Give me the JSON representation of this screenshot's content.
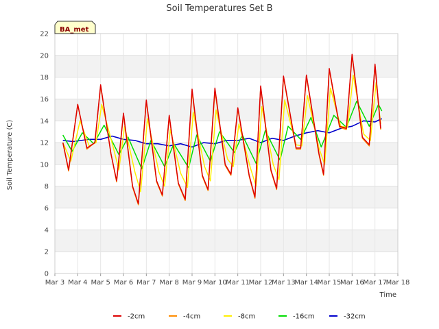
{
  "chart_data": {
    "type": "line",
    "title": "Soil Temperatures Set B",
    "xlabel": "Time",
    "ylabel": "Soil Temperature (C)",
    "site_label": "BA_met",
    "xlim": [
      3,
      18
    ],
    "ylim": [
      0,
      22
    ],
    "x_ticks": [
      {
        "value": 3,
        "label": "Mar 3"
      },
      {
        "value": 4,
        "label": "Mar 4"
      },
      {
        "value": 5,
        "label": "Mar 5"
      },
      {
        "value": 6,
        "label": "Mar 6"
      },
      {
        "value": 7,
        "label": "Mar 7"
      },
      {
        "value": 8,
        "label": "Mar 8"
      },
      {
        "value": 9,
        "label": "Mar 9"
      },
      {
        "value": 10,
        "label": "Mar 10"
      },
      {
        "value": 11,
        "label": "Mar 11"
      },
      {
        "value": 12,
        "label": "Mar 12"
      },
      {
        "value": 13,
        "label": "Mar 13"
      },
      {
        "value": 14,
        "label": "Mar 14"
      },
      {
        "value": 15,
        "label": "Mar 15"
      },
      {
        "value": 16,
        "label": "Mar 16"
      },
      {
        "value": 17,
        "label": "Mar 17"
      },
      {
        "value": 18,
        "label": "Mar 18"
      }
    ],
    "y_ticks": [
      0,
      2,
      4,
      6,
      8,
      10,
      12,
      14,
      16,
      18,
      20,
      22
    ],
    "grid": true,
    "banded_background": true,
    "legend_position": "bottom",
    "series": [
      {
        "name": "-2cm",
        "color": "#dd0000",
        "x": [
          3.35,
          3.6,
          4.0,
          4.4,
          4.75,
          5.0,
          5.45,
          5.7,
          6.0,
          6.4,
          6.65,
          7.0,
          7.45,
          7.7,
          8.0,
          8.4,
          8.7,
          9.0,
          9.45,
          9.7,
          10.0,
          10.45,
          10.7,
          11.0,
          11.5,
          11.75,
          12.0,
          12.45,
          12.7,
          13.0,
          13.55,
          13.75,
          14.0,
          14.55,
          14.75,
          15.0,
          15.45,
          15.75,
          16.0,
          16.45,
          16.75,
          17.0,
          17.25
        ],
        "y": [
          12.0,
          9.5,
          15.5,
          11.5,
          12.0,
          17.3,
          11.0,
          8.5,
          14.7,
          8.0,
          6.4,
          15.9,
          8.5,
          7.2,
          14.5,
          8.3,
          6.8,
          16.9,
          9.0,
          7.7,
          17.0,
          10.0,
          9.1,
          15.2,
          9.0,
          7.0,
          17.2,
          9.5,
          7.8,
          18.1,
          11.5,
          11.5,
          18.2,
          11.0,
          9.1,
          18.8,
          13.5,
          13.3,
          20.1,
          12.5,
          11.8,
          19.2,
          13.3
        ]
      },
      {
        "name": "-4cm",
        "color": "#ff8c00",
        "x": [
          3.35,
          3.6,
          4.0,
          4.4,
          4.75,
          5.0,
          5.45,
          5.7,
          6.0,
          6.4,
          6.65,
          7.0,
          7.45,
          7.7,
          8.0,
          8.4,
          8.7,
          9.0,
          9.45,
          9.7,
          10.0,
          10.45,
          10.7,
          11.0,
          11.5,
          11.75,
          12.0,
          12.45,
          12.7,
          13.0,
          13.55,
          13.75,
          14.0,
          14.55,
          14.75,
          15.0,
          15.45,
          15.75,
          16.0,
          16.45,
          16.75,
          17.0,
          17.25
        ],
        "y": [
          12.0,
          9.4,
          15.5,
          11.4,
          12.0,
          17.2,
          11.0,
          8.4,
          14.6,
          7.9,
          6.3,
          15.8,
          8.4,
          7.1,
          14.4,
          8.2,
          6.7,
          16.7,
          8.9,
          7.6,
          16.8,
          9.9,
          9.0,
          15.1,
          8.9,
          6.9,
          17.1,
          9.4,
          7.7,
          18.0,
          11.4,
          11.4,
          18.1,
          10.9,
          9.0,
          18.7,
          13.4,
          13.2,
          20.0,
          12.4,
          11.7,
          19.1,
          13.2
        ]
      },
      {
        "name": "-8cm",
        "color": "#ffee00",
        "x": [
          3.35,
          3.7,
          4.1,
          4.5,
          4.8,
          5.05,
          5.55,
          5.8,
          6.05,
          6.5,
          6.75,
          7.05,
          7.55,
          7.8,
          8.05,
          8.5,
          8.8,
          9.05,
          9.55,
          9.8,
          10.05,
          10.55,
          10.8,
          11.05,
          11.55,
          11.8,
          12.05,
          12.55,
          12.8,
          13.05,
          13.55,
          13.8,
          14.05,
          14.55,
          14.8,
          15.05,
          15.5,
          15.8,
          16.05,
          16.5,
          16.8,
          17.05,
          17.25
        ],
        "y": [
          12.0,
          10.3,
          14.0,
          11.7,
          12.0,
          15.5,
          11.6,
          9.5,
          13.5,
          9.3,
          7.5,
          14.2,
          9.3,
          8.0,
          13.2,
          9.2,
          7.9,
          14.8,
          9.8,
          8.5,
          15.0,
          10.5,
          9.8,
          13.7,
          9.7,
          8.0,
          15.3,
          10.0,
          8.6,
          15.9,
          11.8,
          11.7,
          16.3,
          11.5,
          10.0,
          17.0,
          13.5,
          13.4,
          18.2,
          12.8,
          12.2,
          17.5,
          13.7
        ]
      },
      {
        "name": "-16cm",
        "color": "#00dd00",
        "x": [
          3.35,
          3.75,
          4.2,
          4.7,
          5.15,
          5.8,
          6.2,
          6.8,
          7.2,
          7.8,
          8.2,
          8.85,
          9.2,
          9.8,
          10.2,
          10.85,
          11.2,
          11.8,
          12.2,
          12.85,
          13.2,
          13.75,
          14.2,
          14.65,
          15.2,
          15.75,
          16.2,
          16.75,
          17.15,
          17.3
        ],
        "y": [
          12.7,
          11.2,
          12.9,
          11.9,
          13.6,
          10.9,
          12.5,
          9.6,
          12.2,
          9.8,
          11.9,
          9.7,
          12.7,
          10.3,
          13.0,
          11.1,
          12.7,
          10.1,
          13.1,
          10.4,
          13.5,
          12.3,
          14.3,
          11.6,
          14.5,
          13.4,
          15.8,
          13.5,
          15.5,
          14.9
        ]
      },
      {
        "name": "-32cm",
        "color": "#0000cc",
        "x": [
          3.35,
          3.8,
          4.5,
          5.0,
          5.5,
          6.0,
          6.5,
          7.0,
          7.5,
          8.0,
          8.5,
          9.0,
          9.5,
          10.0,
          10.5,
          11.0,
          11.5,
          12.0,
          12.5,
          13.0,
          13.5,
          14.0,
          14.5,
          15.0,
          15.5,
          16.0,
          16.5,
          17.0,
          17.3
        ],
        "y": [
          12.2,
          12.1,
          12.3,
          12.3,
          12.6,
          12.3,
          12.2,
          11.9,
          11.9,
          11.7,
          11.9,
          11.6,
          12.0,
          11.9,
          12.2,
          12.2,
          12.4,
          12.0,
          12.4,
          12.2,
          12.6,
          12.9,
          13.1,
          12.9,
          13.3,
          13.5,
          14.0,
          13.9,
          14.2
        ]
      }
    ]
  }
}
